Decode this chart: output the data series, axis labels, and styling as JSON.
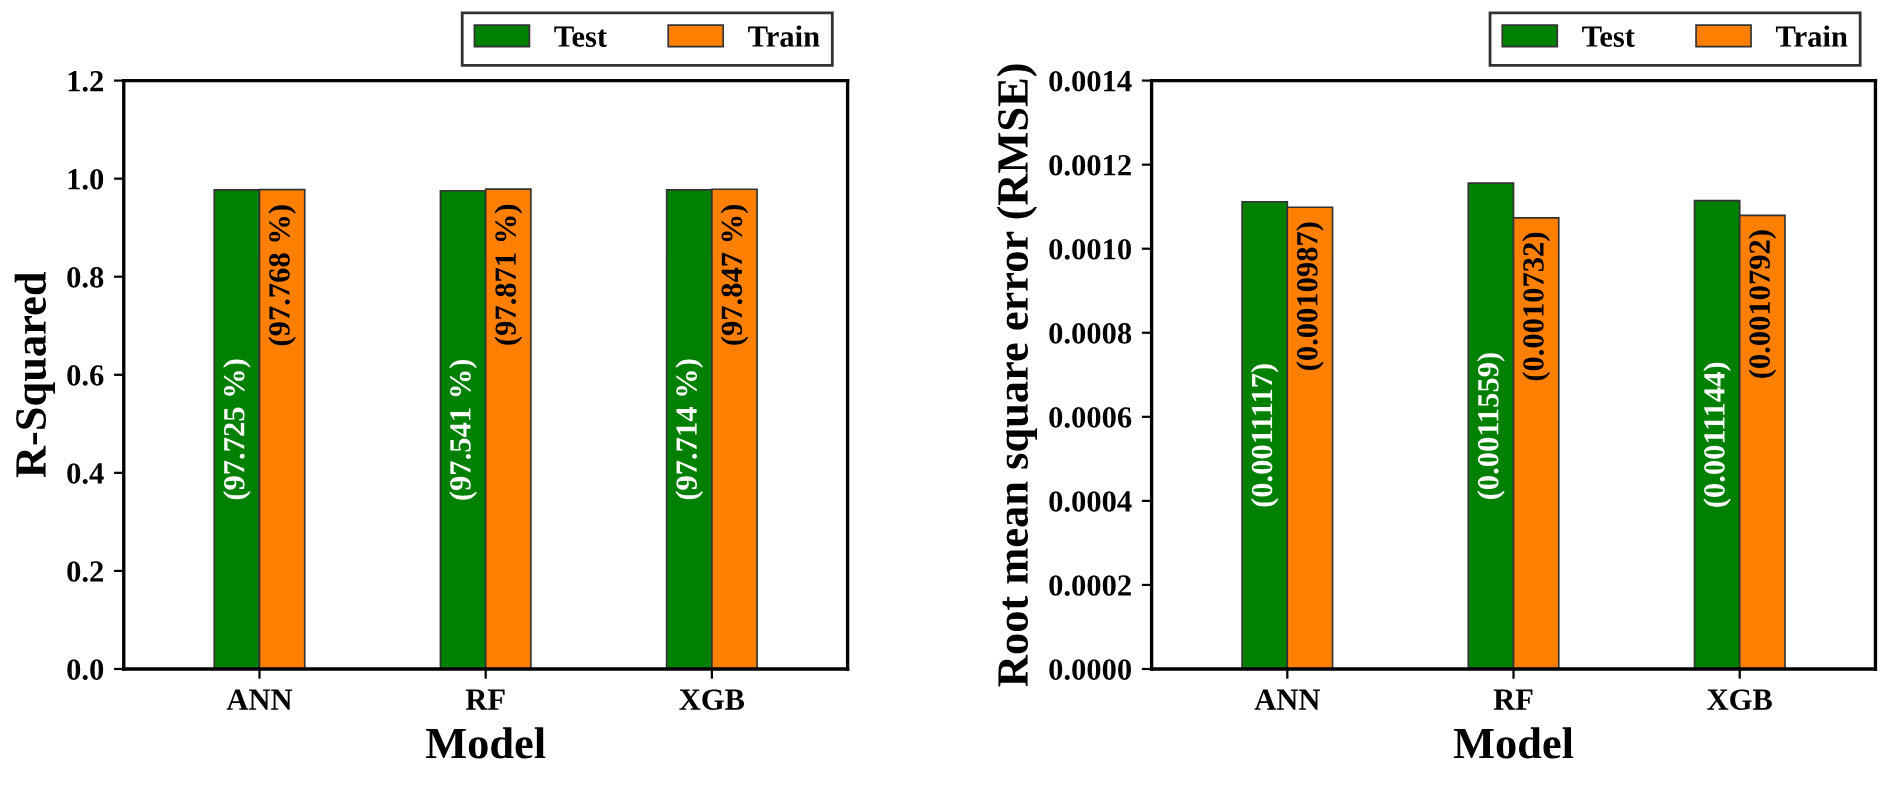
{
  "chart_data": [
    {
      "type": "bar",
      "xlabel": "Model",
      "ylabel": "R-Squared",
      "categories": [
        "ANN",
        "RF",
        "XGB"
      ],
      "ylim": [
        0,
        1.2
      ],
      "yticks": [
        {
          "value": 0,
          "label": "0.0"
        },
        {
          "value": 0.2,
          "label": "0.2"
        },
        {
          "value": 0.4,
          "label": "0.4"
        },
        {
          "value": 0.6,
          "label": "0.6"
        },
        {
          "value": 0.8,
          "label": "0.8"
        },
        {
          "value": 1.0,
          "label": "1.0"
        },
        {
          "value": 1.2,
          "label": "1.2"
        }
      ],
      "legend": "top right",
      "grid": false,
      "series": [
        {
          "name": "Test",
          "color": "#008000",
          "values": [
            0.97725,
            0.97541,
            0.97714
          ],
          "value_labels": [
            "(97.725 %)",
            "(97.541 %)",
            "(97.714 %)"
          ]
        },
        {
          "name": "Train",
          "color": "#ff8000",
          "values": [
            0.97768,
            0.97871,
            0.97847
          ],
          "value_labels": [
            "(97.768 %)",
            "(97.871 %)",
            "(97.847 %)"
          ]
        }
      ]
    },
    {
      "type": "bar",
      "xlabel": "Model",
      "ylabel": "Root mean square error (RMSE)",
      "categories": [
        "ANN",
        "RF",
        "XGB"
      ],
      "ylim": [
        0,
        0.0014
      ],
      "yticks": [
        {
          "value": 0,
          "label": "0.0000"
        },
        {
          "value": 0.0002,
          "label": "0.0002"
        },
        {
          "value": 0.0004,
          "label": "0.0004"
        },
        {
          "value": 0.0006,
          "label": "0.0006"
        },
        {
          "value": 0.0008,
          "label": "0.0008"
        },
        {
          "value": 0.001,
          "label": "0.0010"
        },
        {
          "value": 0.0012,
          "label": "0.0012"
        },
        {
          "value": 0.0014,
          "label": "0.0014"
        }
      ],
      "legend": "top right",
      "grid": false,
      "series": [
        {
          "name": "Test",
          "color": "#008000",
          "values": [
            0.0011117,
            0.0011559,
            0.0011144
          ],
          "value_labels": [
            "(0.0011117)",
            "(0.0011559)",
            "(0.0011144)"
          ]
        },
        {
          "name": "Train",
          "color": "#ff8000",
          "values": [
            0.0010987,
            0.0010732,
            0.0010792
          ],
          "value_labels": [
            "(0.0010987)",
            "(0.0010732)",
            "(0.0010792)"
          ]
        }
      ]
    }
  ]
}
